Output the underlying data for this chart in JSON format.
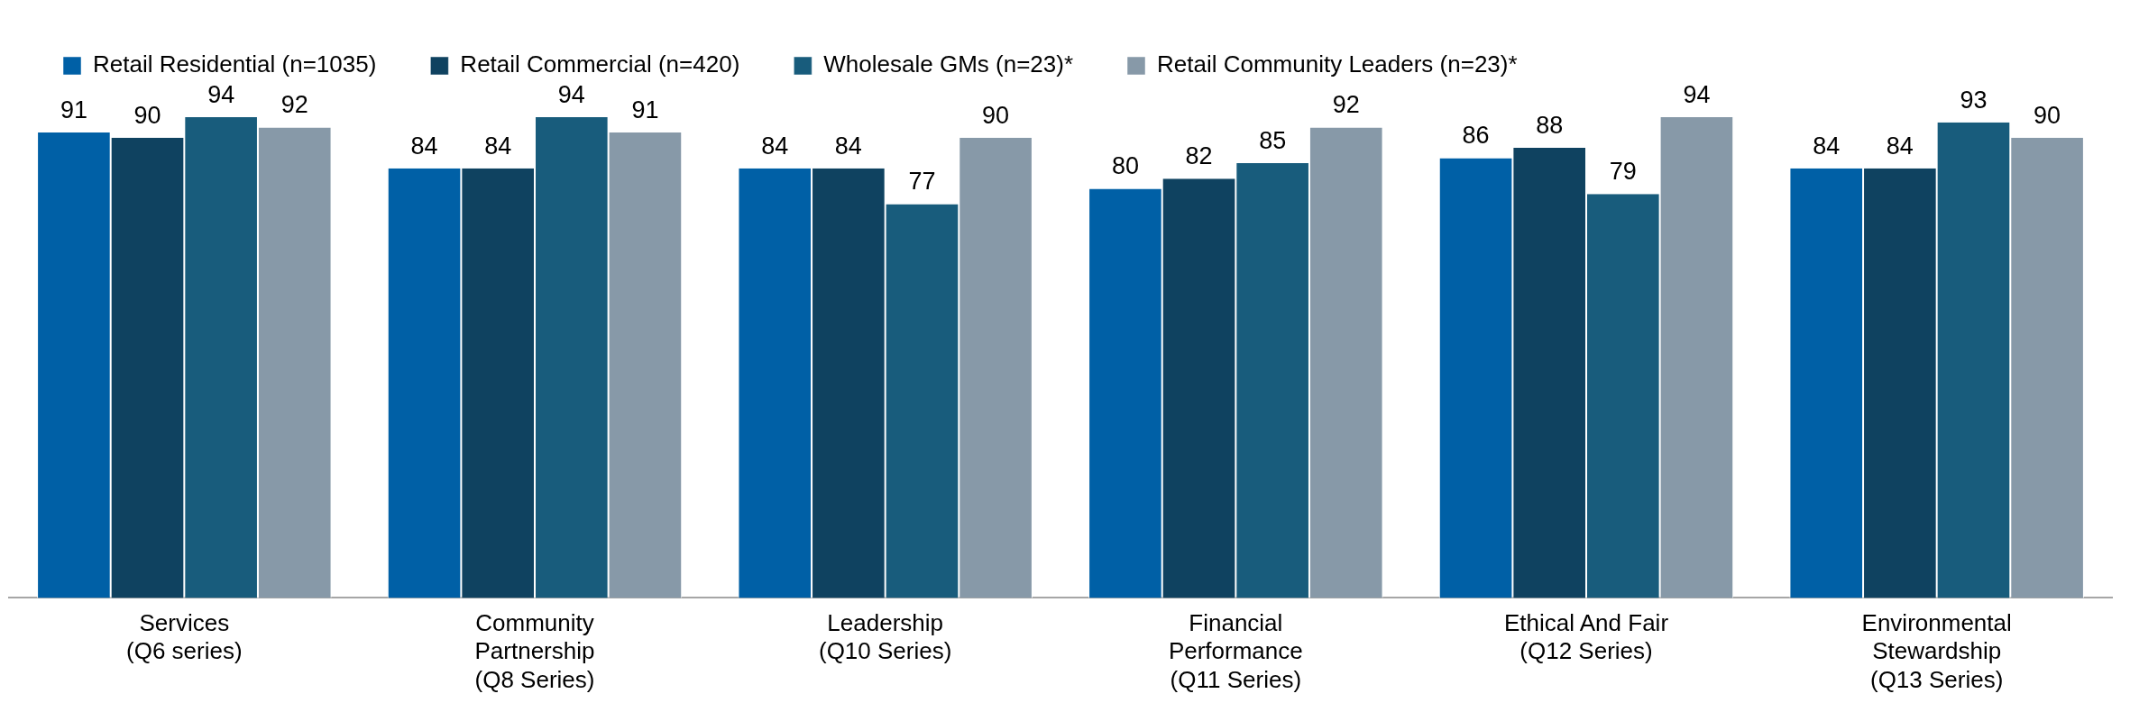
{
  "chart_data": {
    "type": "bar",
    "categories": [
      "Services\n(Q6 series)",
      "Community\nPartnership\n(Q8 Series)",
      "Leadership\n(Q10 Series)",
      "Financial\nPerformance\n(Q11 Series)",
      "Ethical And Fair\n(Q12 Series)",
      "Environmental\nStewardship\n(Q13 Series)"
    ],
    "series": [
      {
        "name": "Retail Residential (n=1035)",
        "color": "#0060a6",
        "values": [
          91,
          84,
          84,
          80,
          86,
          84
        ]
      },
      {
        "name": "Retail Commercial (n=420)",
        "color": "#0f4260",
        "values": [
          90,
          84,
          84,
          82,
          88,
          84
        ]
      },
      {
        "name": "Wholesale GMs (n=23)*",
        "color": "#185c7c",
        "values": [
          94,
          94,
          77,
          85,
          79,
          93
        ]
      },
      {
        "name": "Retail Community Leaders (n=23)*",
        "color": "#8799a8",
        "values": [
          92,
          91,
          90,
          92,
          94,
          90
        ]
      }
    ],
    "data_labels": true,
    "legend": "top left",
    "grid": false
  }
}
